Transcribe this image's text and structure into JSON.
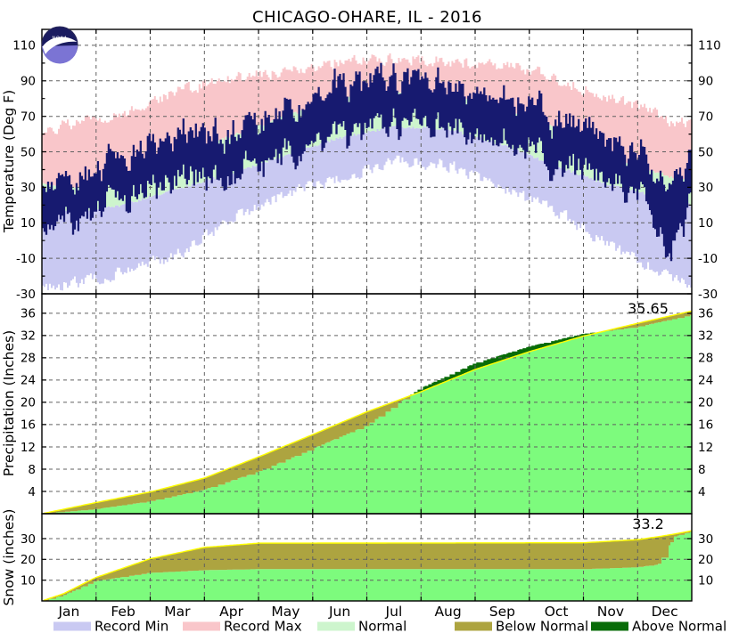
{
  "title": "CHICAGO-OHARE, IL - 2016",
  "logo": {
    "text": "NOAA"
  },
  "months": [
    "Jan",
    "Feb",
    "Mar",
    "Apr",
    "May",
    "Jun",
    "Jul",
    "Aug",
    "Sep",
    "Oct",
    "Nov",
    "Dec"
  ],
  "colors": {
    "record_min": "#c9c9f2",
    "record_max": "#f9c6ca",
    "normal": "#cdf5cd",
    "observed": "#171a70",
    "cumulative_actual": "#7dfb7d",
    "below_normal": "#ada440",
    "above_normal": "#086c08",
    "normal_line": "#ffff00",
    "grid": "#606060",
    "frame": "#000000",
    "logo_dark": "#1b1c60",
    "logo_light": "#7b74d4"
  },
  "legend": {
    "items": [
      {
        "name": "record-min",
        "label": "Record Min",
        "color_key": "record_min"
      },
      {
        "name": "record-max",
        "label": "Record Max",
        "color_key": "record_max"
      },
      {
        "name": "normal",
        "label": "Normal",
        "color_key": "normal"
      },
      {
        "name": "below-normal",
        "label": "Below Normal",
        "color_key": "below_normal"
      },
      {
        "name": "above-normal",
        "label": "Above Normal",
        "color_key": "above_normal"
      }
    ]
  },
  "chart_data": [
    {
      "type": "area",
      "panel": "temperature",
      "ylabel": "Temperature (Deg F)",
      "ylim": [
        -30,
        119
      ],
      "yticks": [
        -30,
        -10,
        10,
        30,
        50,
        70,
        90,
        110
      ],
      "ytick_minor_step": 10,
      "x_month_units": [
        0,
        0.5,
        1.5,
        2.5,
        3.5,
        4.5,
        5.5,
        6.5,
        7.5,
        8.5,
        9.5,
        10.5,
        11.2,
        11.6,
        12
      ],
      "series": {
        "record_high": [
          62,
          65,
          72,
          84,
          91,
          95,
          101,
          103,
          101,
          99,
          92,
          80,
          73,
          68,
          66
        ],
        "record_low": [
          -26,
          -25,
          -18,
          -8,
          12,
          26,
          35,
          45,
          43,
          29,
          17,
          -3,
          -14,
          -22,
          -24
        ],
        "normal_high": [
          32,
          30,
          35,
          47,
          59,
          70,
          80,
          84,
          82,
          75,
          63,
          47,
          40,
          36,
          33
        ],
        "normal_low": [
          18,
          16,
          20,
          29,
          38,
          48,
          58,
          64,
          63,
          54,
          42,
          31,
          26,
          23,
          20
        ],
        "observed_high": [
          30,
          32,
          43,
          56,
          58,
          68,
          83,
          85,
          84,
          80,
          67,
          54,
          42,
          26,
          40
        ],
        "observed_low": [
          14,
          17,
          28,
          38,
          42,
          52,
          64,
          67,
          68,
          63,
          49,
          39,
          27,
          -6,
          26
        ]
      }
    },
    {
      "type": "area",
      "panel": "precipitation",
      "ylabel": "Precipitation (Inches)",
      "ylim": [
        0,
        39.5
      ],
      "yticks": [
        4,
        8,
        12,
        16,
        20,
        24,
        28,
        32,
        36
      ],
      "annotation": "35.65",
      "x_month_units": [
        0,
        1,
        2,
        3,
        4,
        5,
        6,
        7,
        8,
        9,
        10,
        11,
        12
      ],
      "series": {
        "actual_cumulative": [
          0,
          0.8,
          2.2,
          4.3,
          7.5,
          11.6,
          15.8,
          22.5,
          27.0,
          30.0,
          32.3,
          33.5,
          35.65
        ],
        "normal_cumulative": [
          0,
          2.0,
          3.9,
          6.4,
          10.2,
          14.2,
          18.3,
          21.9,
          25.9,
          29.1,
          31.9,
          34.2,
          36.4
        ]
      }
    },
    {
      "type": "area",
      "panel": "snow",
      "ylabel": "Snow (inches)",
      "ylim": [
        0,
        42
      ],
      "yticks": [
        10,
        20,
        30
      ],
      "annotation": "33.2",
      "x_month_units": [
        0,
        0.4,
        1,
        2,
        3,
        4,
        10,
        11,
        11.4,
        11.7,
        12
      ],
      "series": {
        "actual_cumulative": [
          0,
          2.5,
          9.5,
          13.5,
          14.8,
          15.3,
          15.3,
          16.2,
          17.5,
          31.0,
          33.2
        ],
        "normal_cumulative": [
          0,
          3.5,
          11.3,
          20.3,
          25.8,
          27.8,
          28.0,
          29.5,
          31.0,
          32.3,
          33.8
        ]
      }
    }
  ]
}
